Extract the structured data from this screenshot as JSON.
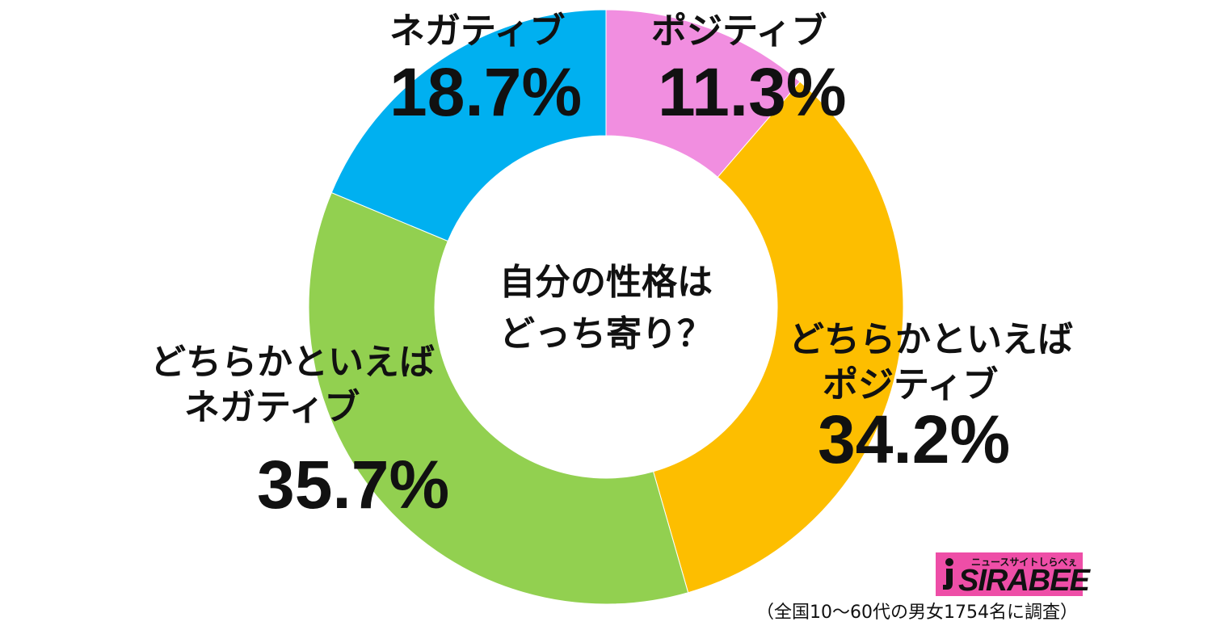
{
  "chart_data": {
    "type": "pie",
    "donut": true,
    "center_title_lines": [
      "自分の性格は",
      "どっち寄り？"
    ],
    "slices": [
      {
        "label_lines": [
          "ポジティブ"
        ],
        "value": 11.3,
        "value_text": "11.3%",
        "color": "#f18ee0"
      },
      {
        "label_lines": [
          "どちらかといえば",
          "ポジティブ"
        ],
        "value": 34.2,
        "value_text": "34.2%",
        "color": "#fdbe00"
      },
      {
        "label_lines": [
          "どちらかといえば",
          "ネガティブ"
        ],
        "value": 35.7,
        "value_text": "35.7%",
        "color": "#92d050"
      },
      {
        "label_lines": [
          "ネガティブ"
        ],
        "value": 18.7,
        "value_text": "18.7%",
        "color": "#00b0f0"
      }
    ],
    "start": "top",
    "direction": "clockwise"
  },
  "logo": {
    "tagline": "ニュースサイトしらべぇ",
    "brand": "SIRABEE",
    "color": "#ee4ea7"
  },
  "footnote": "（全国10～60代の男女1754名に調査）"
}
